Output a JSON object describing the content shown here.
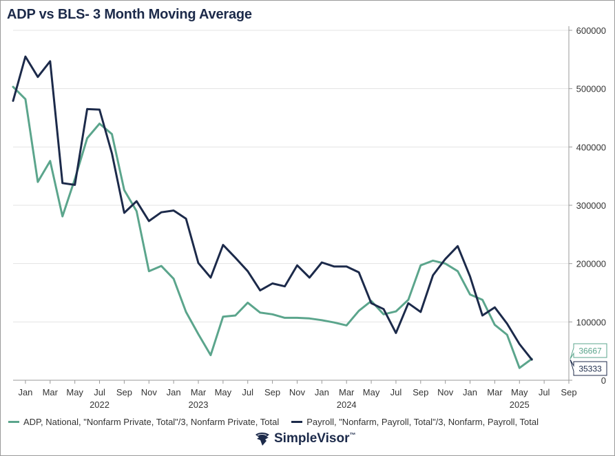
{
  "title": "ADP vs BLS- 3 Month Moving Average",
  "colors": {
    "adp": "#5ba58c",
    "payroll": "#1c2a4a",
    "title": "#1c2a4a"
  },
  "brand": {
    "name": "SimpleVisor",
    "tm": "™",
    "icon": "eagle-logo-icon"
  },
  "chart_data": {
    "type": "line",
    "title": "ADP vs BLS- 3 Month Moving Average",
    "x_start": "2021-12",
    "x_end": "2025-09",
    "x_tick_labels": [
      "Jan",
      "Mar",
      "May",
      "Jul",
      "Sep",
      "Nov",
      "Jan",
      "Mar",
      "May",
      "Jul",
      "Sep",
      "Nov",
      "Jan",
      "Mar",
      "May",
      "Jul",
      "Sep",
      "Nov",
      "Jan",
      "Mar",
      "May",
      "Jul",
      "Sep"
    ],
    "x_tick_dates": [
      "2022-01",
      "2022-03",
      "2022-05",
      "2022-07",
      "2022-09",
      "2022-11",
      "2023-01",
      "2023-03",
      "2023-05",
      "2023-07",
      "2023-09",
      "2023-11",
      "2024-01",
      "2024-03",
      "2024-05",
      "2024-07",
      "2024-09",
      "2024-11",
      "2025-01",
      "2025-03",
      "2025-05",
      "2025-07",
      "2025-09"
    ],
    "year_labels": [
      {
        "label": "2022",
        "date": "2022-07"
      },
      {
        "label": "2023",
        "date": "2023-03"
      },
      {
        "label": "2024",
        "date": "2024-03"
      },
      {
        "label": "2025",
        "date": "2025-05"
      }
    ],
    "y_ticks": [
      0,
      100000,
      200000,
      300000,
      400000,
      500000,
      600000
    ],
    "ylim": [
      0,
      600000
    ],
    "y_axis_side": "right",
    "grid": true,
    "legend_position": "bottom",
    "series": [
      {
        "name": "ADP, National, \"Nonfarm Private, Total\"/3, Nonfarm Private, Total",
        "color": "#5ba58c",
        "last_value_label": "36667",
        "points": [
          [
            "2021-12",
            503000
          ],
          [
            "2022-01",
            482000
          ],
          [
            "2022-02",
            340000
          ],
          [
            "2022-03",
            376000
          ],
          [
            "2022-04",
            281000
          ],
          [
            "2022-05",
            345000
          ],
          [
            "2022-06",
            415000
          ],
          [
            "2022-07",
            440000
          ],
          [
            "2022-08",
            422000
          ],
          [
            "2022-09",
            326000
          ],
          [
            "2022-10",
            290000
          ],
          [
            "2022-11",
            187000
          ],
          [
            "2022-12",
            196000
          ],
          [
            "2023-01",
            174000
          ],
          [
            "2023-02",
            117000
          ],
          [
            "2023-03",
            79000
          ],
          [
            "2023-04",
            43000
          ],
          [
            "2023-05",
            109000
          ],
          [
            "2023-06",
            111000
          ],
          [
            "2023-07",
            133000
          ],
          [
            "2023-08",
            116000
          ],
          [
            "2023-09",
            113000
          ],
          [
            "2023-10",
            107000
          ],
          [
            "2023-11",
            107000
          ],
          [
            "2023-12",
            106000
          ],
          [
            "2024-01",
            103000
          ],
          [
            "2024-02",
            99000
          ],
          [
            "2024-03",
            94000
          ],
          [
            "2024-04",
            119000
          ],
          [
            "2024-05",
            136000
          ],
          [
            "2024-06",
            113000
          ],
          [
            "2024-07",
            118000
          ],
          [
            "2024-08",
            138000
          ],
          [
            "2024-09",
            197000
          ],
          [
            "2024-10",
            205000
          ],
          [
            "2024-11",
            200000
          ],
          [
            "2024-12",
            187000
          ],
          [
            "2025-01",
            147000
          ],
          [
            "2025-02",
            138000
          ],
          [
            "2025-03",
            95000
          ],
          [
            "2025-04",
            78000
          ],
          [
            "2025-05",
            21000
          ],
          [
            "2025-06",
            36667
          ]
        ]
      },
      {
        "name": "Payroll, \"Nonfarm, Payroll, Total\"/3, Nonfarm, Payroll, Total",
        "color": "#1c2a4a",
        "last_value_label": "35333",
        "points": [
          [
            "2021-12",
            479000
          ],
          [
            "2022-01",
            555000
          ],
          [
            "2022-02",
            520000
          ],
          [
            "2022-03",
            547000
          ],
          [
            "2022-04",
            338000
          ],
          [
            "2022-05",
            335000
          ],
          [
            "2022-06",
            465000
          ],
          [
            "2022-07",
            464000
          ],
          [
            "2022-08",
            389000
          ],
          [
            "2022-09",
            287000
          ],
          [
            "2022-10",
            307000
          ],
          [
            "2022-11",
            273000
          ],
          [
            "2022-12",
            288000
          ],
          [
            "2023-01",
            291000
          ],
          [
            "2023-02",
            277000
          ],
          [
            "2023-03",
            201000
          ],
          [
            "2023-04",
            176000
          ],
          [
            "2023-05",
            232000
          ],
          [
            "2023-06",
            210000
          ],
          [
            "2023-07",
            187000
          ],
          [
            "2023-08",
            154000
          ],
          [
            "2023-09",
            166000
          ],
          [
            "2023-10",
            161000
          ],
          [
            "2023-11",
            197000
          ],
          [
            "2023-12",
            176000
          ],
          [
            "2024-01",
            202000
          ],
          [
            "2024-02",
            195000
          ],
          [
            "2024-03",
            195000
          ],
          [
            "2024-04",
            185000
          ],
          [
            "2024-05",
            132000
          ],
          [
            "2024-06",
            122000
          ],
          [
            "2024-07",
            81000
          ],
          [
            "2024-08",
            132000
          ],
          [
            "2024-09",
            117000
          ],
          [
            "2024-10",
            180000
          ],
          [
            "2024-11",
            208000
          ],
          [
            "2024-12",
            230000
          ],
          [
            "2025-01",
            178000
          ],
          [
            "2025-02",
            111000
          ],
          [
            "2025-03",
            125000
          ],
          [
            "2025-04",
            97000
          ],
          [
            "2025-05",
            62000
          ],
          [
            "2025-06",
            35333
          ]
        ]
      }
    ]
  }
}
